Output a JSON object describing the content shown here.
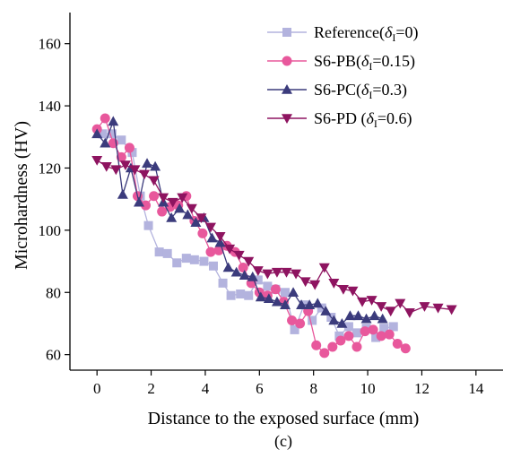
{
  "chart_data": {
    "type": "line",
    "xlabel": "Distance to the exposed surface (mm)",
    "ylabel": "Microhardness (HV)",
    "caption": "(c)",
    "xlim": [
      -1,
      15
    ],
    "ylim": [
      55,
      170
    ],
    "xticks": [
      0,
      2,
      4,
      6,
      8,
      10,
      12,
      14
    ],
    "yticks": [
      60,
      80,
      100,
      120,
      140,
      160
    ],
    "legend_position": "top-right",
    "series": [
      {
        "name": "Reference(δI=0)",
        "legend_main": "Reference(",
        "legend_sym": "δ",
        "legend_sub": "I",
        "legend_tail": "=0)",
        "marker": "square",
        "color": "#b3b3de",
        "x": [
          0.2,
          0.55,
          0.9,
          1.3,
          1.6,
          1.9,
          2.3,
          2.6,
          2.95,
          3.3,
          3.6,
          3.95,
          4.3,
          4.65,
          4.95,
          5.3,
          5.6,
          5.95,
          6.3,
          6.6,
          6.95,
          7.3,
          7.65,
          7.95,
          8.3,
          8.65,
          8.95,
          9.3,
          9.6,
          9.95,
          10.3,
          10.6,
          10.95
        ],
        "y": [
          131,
          131,
          129,
          125,
          111,
          101.5,
          93,
          92.5,
          89.5,
          91,
          90.5,
          90,
          88.5,
          83,
          79,
          79.5,
          79,
          84,
          82,
          81,
          80,
          68,
          76,
          71,
          75,
          72,
          66,
          69,
          67,
          68.5,
          65.5,
          68.5,
          69
        ]
      },
      {
        "name": "S6-PB(δI=0.15)",
        "legend_main": "S6-PB(",
        "legend_sym": "δ",
        "legend_sub": "I",
        "legend_tail": "=0.15)",
        "marker": "circle",
        "color": "#e8589c",
        "x": [
          0,
          0.3,
          0.6,
          0.9,
          1.2,
          1.5,
          1.8,
          2.1,
          2.4,
          2.7,
          3.0,
          3.3,
          3.6,
          3.9,
          4.2,
          4.5,
          4.8,
          5.1,
          5.4,
          5.7,
          6.0,
          6.3,
          6.6,
          6.9,
          7.2,
          7.5,
          7.8,
          8.1,
          8.4,
          8.7,
          9.0,
          9.3,
          9.6,
          9.9,
          10.2,
          10.5,
          10.8,
          11.1,
          11.4
        ],
        "y": [
          132.5,
          136,
          128,
          123.5,
          126.5,
          111,
          108,
          111,
          106,
          107.5,
          108,
          111,
          103,
          99,
          93,
          93.5,
          95,
          93,
          88,
          83,
          80,
          79,
          81,
          77,
          71,
          70,
          74,
          63,
          60.5,
          62.5,
          64.5,
          66,
          62.5,
          67.5,
          68,
          66,
          66.5,
          63.5,
          62
        ]
      },
      {
        "name": "S6-PC(δI=0.3)",
        "legend_main": "S6-PC(",
        "legend_sym": "δ",
        "legend_sub": "I",
        "legend_tail": "=0.3)",
        "marker": "triangle-up",
        "color": "#3b3b7c",
        "x": [
          0,
          0.3,
          0.6,
          0.95,
          1.25,
          1.55,
          1.85,
          2.15,
          2.45,
          2.75,
          3.05,
          3.35,
          3.65,
          3.95,
          4.25,
          4.55,
          4.85,
          5.15,
          5.45,
          5.75,
          6.05,
          6.35,
          6.65,
          6.95,
          7.25,
          7.55,
          7.85,
          8.15,
          8.45,
          8.75,
          9.05,
          9.35,
          9.65,
          9.95,
          10.25,
          10.55
        ],
        "y": [
          131,
          128,
          135,
          111.5,
          120,
          109,
          121.5,
          120.5,
          109,
          104,
          107,
          105,
          102.5,
          104,
          97.5,
          96,
          88,
          86.5,
          85.5,
          85,
          78.5,
          78,
          77,
          76,
          80,
          76,
          76,
          76.5,
          74,
          71,
          70,
          72.5,
          72.5,
          71.5,
          72.5,
          71.5
        ]
      },
      {
        "name": "S6-PD (δI=0.6)",
        "legend_main": "S6-PD (",
        "legend_sym": "δ",
        "legend_sub": "I",
        "legend_tail": "=0.6)",
        "marker": "triangle-down",
        "color": "#8e1460",
        "x": [
          0,
          0.35,
          0.7,
          1.05,
          1.4,
          1.75,
          2.1,
          2.45,
          2.8,
          3.15,
          3.5,
          3.85,
          4.2,
          4.55,
          4.9,
          5.25,
          5.6,
          5.95,
          6.3,
          6.65,
          7.0,
          7.35,
          7.7,
          8.05,
          8.4,
          8.75,
          9.1,
          9.45,
          9.8,
          10.15,
          10.5,
          10.85,
          11.2,
          11.55,
          12.1,
          12.6,
          13.1
        ],
        "y": [
          122.5,
          120.5,
          119.5,
          121,
          119.5,
          118,
          116,
          110.5,
          109,
          110.5,
          107,
          104,
          101,
          98,
          94,
          92,
          90,
          87,
          86,
          86.5,
          86.5,
          86,
          83.5,
          82.5,
          88,
          83,
          81,
          80.5,
          77,
          77.5,
          75.5,
          74,
          76.5,
          73.5,
          75.5,
          75,
          74.5
        ]
      }
    ]
  }
}
